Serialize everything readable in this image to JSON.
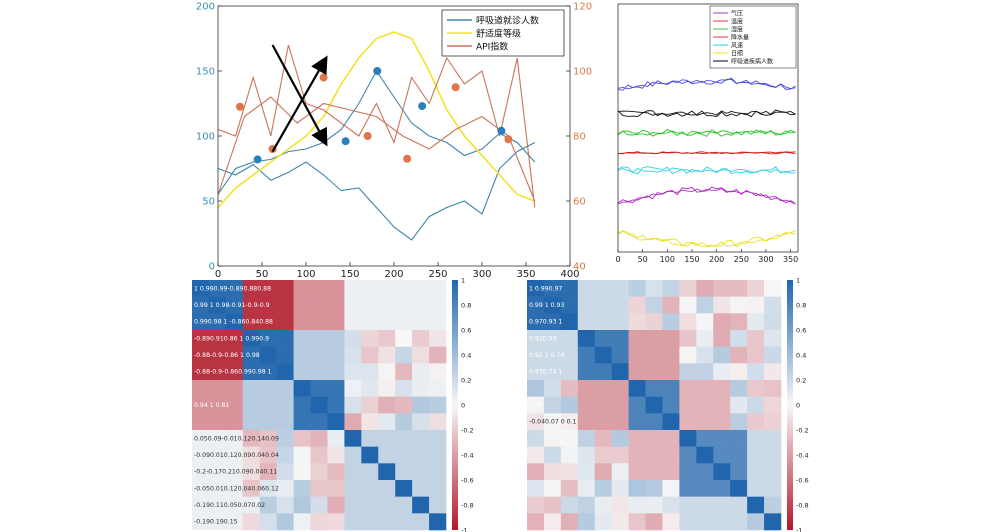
{
  "chart_data": [
    {
      "type": "line",
      "title": "",
      "xlim": [
        0,
        400
      ],
      "ylim_left": [
        0,
        200
      ],
      "ylim_right": [
        40,
        120
      ],
      "xticks": [
        0,
        50,
        100,
        150,
        200,
        250,
        300,
        350,
        400
      ],
      "yticks_left": [
        0,
        50,
        100,
        150,
        200
      ],
      "yticks_right": [
        40,
        60,
        80,
        100,
        120
      ],
      "legend_position": "top-right",
      "colors": {
        "left_axis": "#3d8fb3",
        "right_axis": "#d97b4a"
      },
      "series": [
        {
          "name": "呼吸道就诊人数",
          "color": "#3b86ad",
          "axis": "left",
          "x": [
            0,
            20,
            40,
            60,
            80,
            100,
            120,
            140,
            160,
            180,
            200,
            220,
            240,
            260,
            280,
            300,
            320,
            340,
            360
          ],
          "y": [
            55,
            75,
            80,
            82,
            88,
            90,
            95,
            105,
            125,
            150,
            130,
            110,
            100,
            95,
            85,
            90,
            102,
            95,
            80
          ]
        },
        {
          "name": "呼吸道就诊人数",
          "color": "#3b86ad",
          "axis": "left",
          "x": [
            0,
            20,
            40,
            60,
            80,
            100,
            120,
            140,
            160,
            180,
            200,
            220,
            240,
            260,
            280,
            300,
            320,
            340,
            360
          ],
          "y": [
            75,
            70,
            78,
            66,
            72,
            80,
            70,
            58,
            60,
            45,
            30,
            20,
            38,
            45,
            50,
            40,
            75,
            88,
            95
          ]
        },
        {
          "name": "舒适度等级",
          "color": "#f2e22a",
          "axis": "right",
          "x": [
            0,
            20,
            40,
            60,
            80,
            100,
            120,
            140,
            160,
            180,
            200,
            220,
            240,
            260,
            280,
            300,
            320,
            340,
            360
          ],
          "y": [
            58,
            64,
            68,
            72,
            76,
            80,
            86,
            96,
            104,
            110,
            112,
            110,
            100,
            88,
            80,
            74,
            68,
            62,
            60
          ]
        },
        {
          "name": "API指数",
          "color": "#c9735a",
          "axis": "right",
          "x": [
            0,
            20,
            40,
            60,
            80,
            100,
            120,
            140,
            160,
            180,
            200,
            220,
            240,
            260,
            280,
            300,
            320,
            340,
            360
          ],
          "y": [
            82,
            80,
            98,
            80,
            108,
            90,
            88,
            84,
            80,
            90,
            78,
            98,
            90,
            104,
            96,
            100,
            80,
            104,
            58
          ]
        },
        {
          "name": "API指数",
          "color": "#c9735a",
          "axis": "right",
          "x": [
            0,
            30,
            60,
            90,
            120,
            150,
            180,
            210,
            240,
            270,
            300,
            330,
            360
          ],
          "y": [
            62,
            86,
            92,
            84,
            90,
            88,
            86,
            80,
            76,
            82,
            86,
            80,
            60
          ]
        }
      ],
      "markers": [
        {
          "x": 45,
          "y": 82,
          "axis": "left",
          "color": "#2c7fbf"
        },
        {
          "x": 145,
          "y": 96,
          "axis": "left",
          "color": "#2c7fbf"
        },
        {
          "x": 181,
          "y": 150,
          "axis": "left",
          "color": "#2c7fbf"
        },
        {
          "x": 232,
          "y": 123,
          "axis": "left",
          "color": "#2c7fbf"
        },
        {
          "x": 322,
          "y": 104,
          "axis": "left",
          "color": "#2c7fbf"
        },
        {
          "x": 25,
          "y": 89,
          "axis": "right",
          "color": "#e0744a"
        },
        {
          "x": 62,
          "y": 76,
          "axis": "right",
          "color": "#e0744a"
        },
        {
          "x": 120,
          "y": 98,
          "axis": "right",
          "color": "#e0744a"
        },
        {
          "x": 170,
          "y": 80,
          "axis": "right",
          "color": "#e0744a"
        },
        {
          "x": 215,
          "y": 73,
          "axis": "right",
          "color": "#e0744a"
        },
        {
          "x": 270,
          "y": 95,
          "axis": "right",
          "color": "#e0744a"
        },
        {
          "x": 330,
          "y": 79,
          "axis": "right",
          "color": "#e0744a"
        }
      ],
      "arrows": [
        {
          "from": [
            62,
            170
          ],
          "to": [
            122,
            95
          ]
        },
        {
          "from": [
            62,
            88
          ],
          "to": [
            122,
            159
          ]
        }
      ]
    },
    {
      "type": "line",
      "title": "",
      "xlim": [
        0,
        365
      ],
      "xticks": [
        0,
        50,
        100,
        150,
        200,
        250,
        300,
        350
      ],
      "legend_position": "top-right",
      "legend": [
        {
          "label": "气压",
          "color": "#a03cc8"
        },
        {
          "label": "温度",
          "color": "#e23a3a"
        },
        {
          "label": "湿度",
          "color": "#3fbf3f"
        },
        {
          "label": "降水量",
          "color": "#e23a3a"
        },
        {
          "label": "风速",
          "color": "#3ccfd8"
        },
        {
          "label": "日照",
          "color": "#f0e020"
        },
        {
          "label": "呼吸道疾病人数",
          "color": "#000000"
        }
      ],
      "series": [
        {
          "color": "#4a4ae6",
          "base": 0.66,
          "amp": 0.03,
          "shape": "bump"
        },
        {
          "color": "#101010",
          "base": 0.56,
          "amp": 0.025,
          "shape": "noise"
        },
        {
          "color": "#22c322",
          "base": 0.48,
          "amp": 0.025,
          "shape": "noise"
        },
        {
          "color": "#d11c1c",
          "base": 0.4,
          "amp": 0.012,
          "shape": "flat"
        },
        {
          "color": "#32cfe0",
          "base": 0.33,
          "amp": 0.025,
          "shape": "noise"
        },
        {
          "color": "#b02cc0",
          "base": 0.2,
          "amp": 0.05,
          "shape": "bump"
        },
        {
          "color": "#e8e020",
          "base": 0.08,
          "amp": -0.05,
          "shape": "bump"
        }
      ]
    },
    {
      "type": "heatmap",
      "title": "",
      "rows": 15,
      "cols": 15,
      "colorbar_ticks": [
        "1",
        "0.8",
        "0.6",
        "0.4",
        "0.2",
        "0",
        "-0.2",
        "-0.4",
        "-0.6",
        "-0.8",
        "-1"
      ],
      "row_labels": [
        "1  0.990.99-0.890.880.88",
        "0.99  1  0.98-0.91-0.9-0.9",
        "0.990.98  1  -0.860.840.88",
        "-0.890.910.86  1  0.990.9",
        "-0.88-0.9-0.86  1  0.98",
        "-0.88-0.9-0.860.990.98  1",
        "",
        "0.94  1  0.81",
        "",
        "0.050.09-0.010.120.140.09",
        "-0.090.010.120.090.040.04",
        "-0.2-0.170.210.090.040.11",
        "-0.050.010.120.040.060.12",
        "-0.190.110.050.070.02",
        "-0.190.190.15"
      ]
    },
    {
      "type": "heatmap",
      "title": "",
      "rows": 15,
      "cols": 15,
      "colorbar_ticks": [
        "1",
        "0.8",
        "0.6",
        "0.4",
        "0.2",
        "0",
        "-0.2",
        "-0.4",
        "-0.6",
        "-0.8",
        "-1"
      ],
      "row_labels": [
        "1  0.990.97",
        "0.99  1  0.93",
        "0.970.93  1",
        "0.920.93",
        "0.92  1  0.74",
        "0.930.74  1",
        "",
        "0.86",
        "-0.040.07  0  0.1",
        "",
        "",
        "",
        "",
        "",
        ""
      ]
    }
  ]
}
